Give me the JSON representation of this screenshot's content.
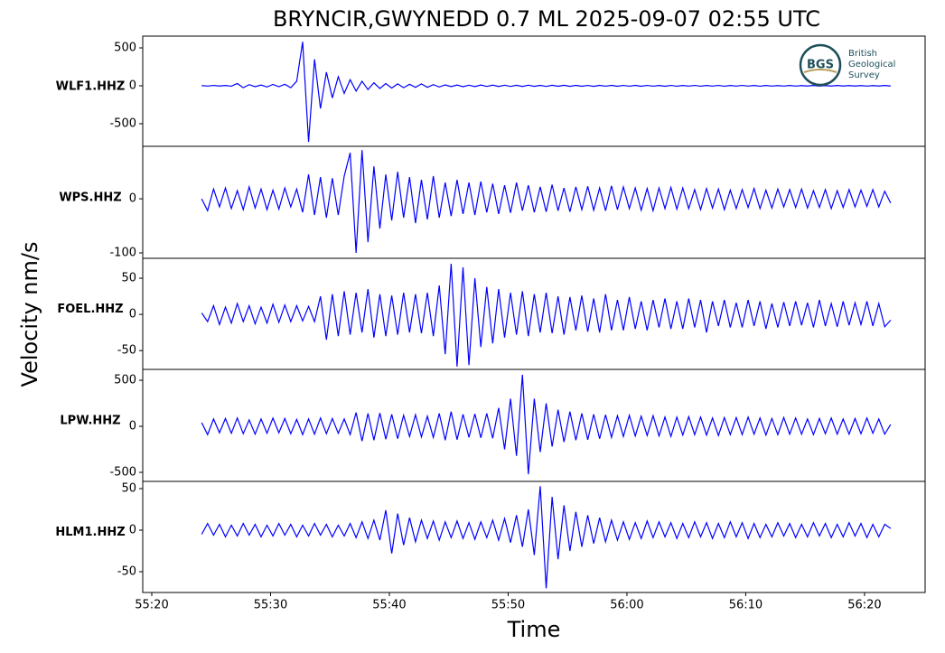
{
  "figure": {
    "title": "BRYNCIR,GWYNEDD 0.7 ML   2025-09-07 02:55 UTC",
    "ylabel": "Velocity nm/s",
    "xlabel": "Time"
  },
  "logo": {
    "mark": "BGS",
    "lines": [
      "British",
      "Geological",
      "Survey"
    ]
  },
  "chart_data": [
    {
      "type": "line",
      "label": "WLF1.HHZ",
      "color": "#0000ff",
      "xlim": [
        19.24,
        85.1
      ],
      "ylim": [
        -798,
        655
      ],
      "yticks": [
        -500,
        0,
        500
      ],
      "x": [
        24.2,
        24.7,
        25.2,
        25.7,
        26.2,
        26.7,
        27.2,
        27.7,
        28.2,
        28.7,
        29.2,
        29.7,
        30.2,
        30.7,
        31.2,
        31.7,
        32.2,
        32.7,
        33.2,
        33.7,
        34.2,
        34.7,
        35.2,
        35.7,
        36.2,
        36.7,
        37.2,
        37.7,
        38.2,
        38.7,
        39.2,
        39.7,
        40.2,
        40.7,
        41.2,
        41.7,
        42.2,
        42.7,
        43.2,
        43.7,
        44.2,
        44.7,
        45.2,
        45.7,
        46.2,
        46.7,
        47.2,
        47.7,
        48.2,
        48.7,
        49.2,
        49.7,
        50.2,
        50.7,
        51.2,
        51.7,
        52.2,
        52.7,
        53.2,
        53.7,
        54.2,
        54.7,
        55.2,
        55.7,
        56.2,
        56.7,
        57.2,
        57.7,
        58.2,
        58.7,
        59.2,
        59.7,
        60.2,
        60.7,
        61.2,
        61.7,
        62.2,
        62.7,
        63.2,
        63.7,
        64.2,
        64.7,
        65.2,
        65.7,
        66.2,
        66.7,
        67.2,
        67.7,
        68.2,
        68.7,
        69.2,
        69.7,
        70.2,
        70.7,
        71.2,
        71.7,
        72.2,
        72.7,
        73.2,
        73.7,
        74.2,
        74.7,
        75.2,
        75.7,
        76.2,
        76.7,
        77.2,
        77.7,
        78.2,
        78.7,
        79.2,
        79.7,
        80.2,
        80.7,
        81.2,
        81.7,
        82.2
      ],
      "values": [
        3,
        -4,
        5,
        -3,
        4,
        -5,
        30,
        -25,
        15,
        -12,
        10,
        -15,
        18,
        -12,
        20,
        -25,
        60,
        580,
        -740,
        350,
        -300,
        180,
        -160,
        120,
        -100,
        80,
        -70,
        60,
        -50,
        40,
        -35,
        30,
        -30,
        25,
        -25,
        20,
        -20,
        25,
        -20,
        15,
        -15,
        12,
        -10,
        10,
        -12,
        8,
        -10,
        10,
        -8,
        9,
        -9,
        8,
        -8,
        7,
        -9,
        8,
        -7,
        6,
        -8,
        7,
        -6,
        7,
        -7,
        6,
        -6,
        5,
        -7,
        6,
        -5,
        6,
        -6,
        5,
        -5,
        6,
        -6,
        5,
        -5,
        4,
        -6,
        5,
        -5,
        4,
        -4,
        5,
        -5,
        4,
        -4,
        5,
        -5,
        4,
        -4,
        5,
        -4,
        4,
        -5,
        4,
        -4,
        3,
        -4,
        4,
        -4,
        3,
        -3,
        4,
        -4,
        3,
        -3,
        4,
        -3,
        3,
        -3,
        3,
        -4,
        3,
        -3,
        4,
        -3
      ]
    },
    {
      "type": "line",
      "label": "WPS.HHZ",
      "color": "#0000ff",
      "xlim": [
        19.24,
        85.1
      ],
      "ylim": [
        -110,
        97
      ],
      "yticks": [
        -100,
        0
      ],
      "x": [
        24.2,
        24.7,
        25.2,
        25.7,
        26.2,
        26.7,
        27.2,
        27.7,
        28.2,
        28.7,
        29.2,
        29.7,
        30.2,
        30.7,
        31.2,
        31.7,
        32.2,
        32.7,
        33.2,
        33.7,
        34.2,
        34.7,
        35.2,
        35.7,
        36.2,
        36.7,
        37.2,
        37.7,
        38.2,
        38.7,
        39.2,
        39.7,
        40.2,
        40.7,
        41.2,
        41.7,
        42.2,
        42.7,
        43.2,
        43.7,
        44.2,
        44.7,
        45.2,
        45.7,
        46.2,
        46.7,
        47.2,
        47.7,
        48.2,
        48.7,
        49.2,
        49.7,
        50.2,
        50.7,
        51.2,
        51.7,
        52.2,
        52.7,
        53.2,
        53.7,
        54.2,
        54.7,
        55.2,
        55.7,
        56.2,
        56.7,
        57.2,
        57.7,
        58.2,
        58.7,
        59.2,
        59.7,
        60.2,
        60.7,
        61.2,
        61.7,
        62.2,
        62.7,
        63.2,
        63.7,
        64.2,
        64.7,
        65.2,
        65.7,
        66.2,
        66.7,
        67.2,
        67.7,
        68.2,
        68.7,
        69.2,
        69.7,
        70.2,
        70.7,
        71.2,
        71.7,
        72.2,
        72.7,
        73.2,
        73.7,
        74.2,
        74.7,
        75.2,
        75.7,
        76.2,
        76.7,
        77.2,
        77.7,
        78.2,
        78.7,
        79.2,
        79.7,
        80.2,
        80.7,
        81.2,
        81.7,
        82.2
      ],
      "values": [
        0,
        -22,
        18,
        -15,
        20,
        -18,
        15,
        -20,
        22,
        -17,
        18,
        -20,
        16,
        -19,
        20,
        -15,
        18,
        -25,
        45,
        -30,
        40,
        -35,
        38,
        -30,
        42,
        85,
        -100,
        90,
        -80,
        60,
        -55,
        45,
        -40,
        50,
        -35,
        40,
        -45,
        35,
        -38,
        42,
        -35,
        30,
        -32,
        35,
        -28,
        30,
        -30,
        32,
        -25,
        28,
        -28,
        25,
        -26,
        30,
        -22,
        25,
        -25,
        22,
        -24,
        26,
        -22,
        20,
        -24,
        22,
        -20,
        23,
        -21,
        20,
        -22,
        24,
        -20,
        22,
        -18,
        20,
        -21,
        19,
        -22,
        20,
        -18,
        21,
        -19,
        20,
        -18,
        17,
        -20,
        19,
        -17,
        18,
        -20,
        16,
        -18,
        17,
        -16,
        19,
        -18,
        16,
        -17,
        18,
        -15,
        17,
        -16,
        18,
        -17,
        15,
        -16,
        17,
        -18,
        15,
        -16,
        17,
        -15,
        16,
        -14,
        17,
        -15,
        14,
        -8
      ]
    },
    {
      "type": "line",
      "label": "FOEL.HHZ",
      "color": "#0000ff",
      "xlim": [
        19.24,
        85.1
      ],
      "ylim": [
        -76,
        77.5
      ],
      "yticks": [
        -50,
        0,
        50
      ],
      "x": [
        24.2,
        24.7,
        25.2,
        25.7,
        26.2,
        26.7,
        27.2,
        27.7,
        28.2,
        28.7,
        29.2,
        29.7,
        30.2,
        30.7,
        31.2,
        31.7,
        32.2,
        32.7,
        33.2,
        33.7,
        34.2,
        34.7,
        35.2,
        35.7,
        36.2,
        36.7,
        37.2,
        37.7,
        38.2,
        38.7,
        39.2,
        39.7,
        40.2,
        40.7,
        41.2,
        41.7,
        42.2,
        42.7,
        43.2,
        43.7,
        44.2,
        44.7,
        45.2,
        45.7,
        46.2,
        46.7,
        47.2,
        47.7,
        48.2,
        48.7,
        49.2,
        49.7,
        50.2,
        50.7,
        51.2,
        51.7,
        52.2,
        52.7,
        53.2,
        53.7,
        54.2,
        54.7,
        55.2,
        55.7,
        56.2,
        56.7,
        57.2,
        57.7,
        58.2,
        58.7,
        59.2,
        59.7,
        60.2,
        60.7,
        61.2,
        61.7,
        62.2,
        62.7,
        63.2,
        63.7,
        64.2,
        64.7,
        65.2,
        65.7,
        66.2,
        66.7,
        67.2,
        67.7,
        68.2,
        68.7,
        69.2,
        69.7,
        70.2,
        70.7,
        71.2,
        71.7,
        72.2,
        72.7,
        73.2,
        73.7,
        74.2,
        74.7,
        75.2,
        75.7,
        76.2,
        76.7,
        77.2,
        77.7,
        78.2,
        78.7,
        79.2,
        79.7,
        80.2,
        80.7,
        81.2,
        81.7,
        82.2
      ],
      "values": [
        2,
        -10,
        12,
        -14,
        10,
        -12,
        15,
        -10,
        12,
        -13,
        10,
        -12,
        14,
        -11,
        13,
        -10,
        12,
        -9,
        11,
        -10,
        25,
        -35,
        28,
        -30,
        32,
        -28,
        30,
        -25,
        35,
        -32,
        28,
        -30,
        26,
        -28,
        30,
        -25,
        28,
        -26,
        30,
        -30,
        40,
        -55,
        70,
        -72,
        65,
        -70,
        50,
        -45,
        38,
        -40,
        35,
        -32,
        30,
        -28,
        32,
        -30,
        28,
        -25,
        30,
        -26,
        25,
        -28,
        24,
        -22,
        26,
        -24,
        22,
        -25,
        28,
        -22,
        20,
        -22,
        24,
        -20,
        18,
        -22,
        20,
        -18,
        22,
        -20,
        18,
        -20,
        22,
        -18,
        20,
        -25,
        18,
        -16,
        20,
        -18,
        16,
        -18,
        20,
        -16,
        18,
        -20,
        15,
        -18,
        17,
        -16,
        18,
        -15,
        16,
        -18,
        20,
        -16,
        15,
        -17,
        18,
        -15,
        16,
        -14,
        18,
        -16,
        15,
        -17,
        -8
      ]
    },
    {
      "type": "line",
      "label": "LPW.HHZ",
      "color": "#0000ff",
      "xlim": [
        19.24,
        85.1
      ],
      "ylim": [
        -598,
        618
      ],
      "yticks": [
        -500,
        0,
        500
      ],
      "x": [
        24.2,
        24.7,
        25.2,
        25.7,
        26.2,
        26.7,
        27.2,
        27.7,
        28.2,
        28.7,
        29.2,
        29.7,
        30.2,
        30.7,
        31.2,
        31.7,
        32.2,
        32.7,
        33.2,
        33.7,
        34.2,
        34.7,
        35.2,
        35.7,
        36.2,
        36.7,
        37.2,
        37.7,
        38.2,
        38.7,
        39.2,
        39.7,
        40.2,
        40.7,
        41.2,
        41.7,
        42.2,
        42.7,
        43.2,
        43.7,
        44.2,
        44.7,
        45.2,
        45.7,
        46.2,
        46.7,
        47.2,
        47.7,
        48.2,
        48.7,
        49.2,
        49.7,
        50.2,
        50.7,
        51.2,
        51.7,
        52.2,
        52.7,
        53.2,
        53.7,
        54.2,
        54.7,
        55.2,
        55.7,
        56.2,
        56.7,
        57.2,
        57.7,
        58.2,
        58.7,
        59.2,
        59.7,
        60.2,
        60.7,
        61.2,
        61.7,
        62.2,
        62.7,
        63.2,
        63.7,
        64.2,
        64.7,
        65.2,
        65.7,
        66.2,
        66.7,
        67.2,
        67.7,
        68.2,
        68.7,
        69.2,
        69.7,
        70.2,
        70.7,
        71.2,
        71.7,
        72.2,
        72.7,
        73.2,
        73.7,
        74.2,
        74.7,
        75.2,
        75.7,
        76.2,
        76.7,
        77.2,
        77.7,
        78.2,
        78.7,
        79.2,
        79.7,
        80.2,
        80.7,
        81.2,
        81.7,
        82.2
      ],
      "values": [
        40,
        -90,
        80,
        -70,
        85,
        -75,
        90,
        -80,
        70,
        -85,
        80,
        -75,
        90,
        -70,
        85,
        -80,
        75,
        -90,
        80,
        -85,
        90,
        -80,
        85,
        -75,
        80,
        -90,
        150,
        -160,
        140,
        -150,
        145,
        -140,
        130,
        -135,
        120,
        -110,
        125,
        -115,
        110,
        -120,
        140,
        -150,
        160,
        -145,
        130,
        -120,
        135,
        -125,
        140,
        -130,
        200,
        -250,
        300,
        -320,
        560,
        -520,
        300,
        -280,
        250,
        -220,
        180,
        -170,
        160,
        -150,
        140,
        -145,
        130,
        -135,
        125,
        -120,
        115,
        -110,
        120,
        -105,
        110,
        -100,
        115,
        -105,
        100,
        -110,
        100,
        -95,
        105,
        -90,
        100,
        -95,
        90,
        -100,
        95,
        -90,
        95,
        -90,
        100,
        -85,
        90,
        -95,
        85,
        -90,
        95,
        -85,
        90,
        -85,
        80,
        -90,
        85,
        -80,
        90,
        -85,
        80,
        -85,
        85,
        -80,
        90,
        -75,
        80,
        -85,
        20
      ]
    },
    {
      "type": "line",
      "label": "HLM1.HHZ",
      "color": "#0000ff",
      "xlim": [
        19.24,
        85.1
      ],
      "ylim": [
        -75,
        58.7
      ],
      "yticks": [
        -50,
        0,
        50
      ],
      "xticks": [
        {
          "value": 20,
          "label": "55:20"
        },
        {
          "value": 30,
          "label": "55:30"
        },
        {
          "value": 40,
          "label": "55:40"
        },
        {
          "value": 50,
          "label": "55:50"
        },
        {
          "value": 60,
          "label": "56:00"
        },
        {
          "value": 70,
          "label": "56:10"
        },
        {
          "value": 80,
          "label": "56:20"
        }
      ],
      "x": [
        24.2,
        24.7,
        25.2,
        25.7,
        26.2,
        26.7,
        27.2,
        27.7,
        28.2,
        28.7,
        29.2,
        29.7,
        30.2,
        30.7,
        31.2,
        31.7,
        32.2,
        32.7,
        33.2,
        33.7,
        34.2,
        34.7,
        35.2,
        35.7,
        36.2,
        36.7,
        37.2,
        37.7,
        38.2,
        38.7,
        39.2,
        39.7,
        40.2,
        40.7,
        41.2,
        41.7,
        42.2,
        42.7,
        43.2,
        43.7,
        44.2,
        44.7,
        45.2,
        45.7,
        46.2,
        46.7,
        47.2,
        47.7,
        48.2,
        48.7,
        49.2,
        49.7,
        50.2,
        50.7,
        51.2,
        51.7,
        52.2,
        52.7,
        53.2,
        53.7,
        54.2,
        54.7,
        55.2,
        55.7,
        56.2,
        56.7,
        57.2,
        57.7,
        58.2,
        58.7,
        59.2,
        59.7,
        60.2,
        60.7,
        61.2,
        61.7,
        62.2,
        62.7,
        63.2,
        63.7,
        64.2,
        64.7,
        65.2,
        65.7,
        66.2,
        66.7,
        67.2,
        67.7,
        68.2,
        68.7,
        69.2,
        69.7,
        70.2,
        70.7,
        71.2,
        71.7,
        72.2,
        72.7,
        73.2,
        73.7,
        74.2,
        74.7,
        75.2,
        75.7,
        76.2,
        76.7,
        77.2,
        77.7,
        78.2,
        78.7,
        79.2,
        79.7,
        80.2,
        80.7,
        81.2,
        81.7,
        82.2
      ],
      "values": [
        -5,
        8,
        -6,
        7,
        -8,
        6,
        -7,
        8,
        -6,
        7,
        -8,
        6,
        -7,
        8,
        -6,
        7,
        -8,
        6,
        -7,
        8,
        -6,
        7,
        -8,
        6,
        -7,
        8,
        -9,
        10,
        -10,
        12,
        -12,
        24,
        -28,
        20,
        -18,
        15,
        -14,
        12,
        -10,
        11,
        -12,
        10,
        -9,
        11,
        -10,
        9,
        -11,
        10,
        -9,
        12,
        -12,
        14,
        -15,
        18,
        -20,
        25,
        -30,
        53,
        -70,
        40,
        -35,
        30,
        -25,
        22,
        -20,
        18,
        -16,
        15,
        -14,
        12,
        -12,
        10,
        -11,
        9,
        -10,
        11,
        -9,
        10,
        -8,
        9,
        -10,
        8,
        -9,
        10,
        -8,
        9,
        -10,
        8,
        -9,
        10,
        -8,
        9,
        -10,
        8,
        -9,
        7,
        -8,
        9,
        -7,
        8,
        -9,
        7,
        -8,
        9,
        -7,
        8,
        -9,
        7,
        -8,
        9,
        -7,
        8,
        -9,
        7,
        -8,
        7,
        2
      ]
    }
  ]
}
